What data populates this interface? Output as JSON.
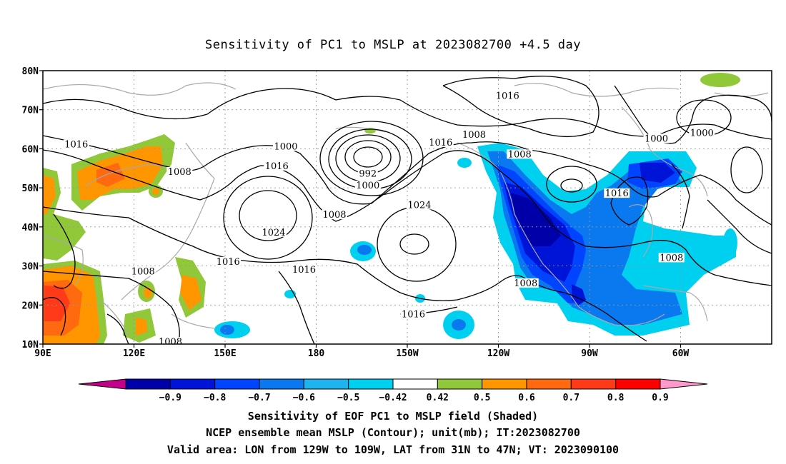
{
  "title": "Sensitivity of PC1 to MSLP at 2023082700 +4.5 day",
  "lat_labels": [
    "80N",
    "70N",
    "60N",
    "50N",
    "40N",
    "30N",
    "20N",
    "10N"
  ],
  "lon_labels": [
    "90E",
    "120E",
    "150E",
    "180",
    "150W",
    "120W",
    "90W",
    "60W"
  ],
  "contour_labels": [
    {
      "text": "1016",
      "lon": 101,
      "lat": 60.5
    },
    {
      "text": "1008",
      "lon": 135,
      "lat": 53.5
    },
    {
      "text": "1000",
      "lon": 170,
      "lat": 60
    },
    {
      "text": "1016",
      "lon": 167,
      "lat": 55
    },
    {
      "text": "992",
      "lon": 197,
      "lat": 53
    },
    {
      "text": "1000",
      "lon": 197,
      "lat": 50
    },
    {
      "text": "1008",
      "lon": 186,
      "lat": 42.5
    },
    {
      "text": "1024",
      "lon": 166,
      "lat": 38
    },
    {
      "text": "1016",
      "lon": 151,
      "lat": 30.5
    },
    {
      "text": "1016",
      "lon": 176,
      "lat": 28.5
    },
    {
      "text": "1008",
      "lon": 123,
      "lat": 28
    },
    {
      "text": "1024",
      "lon": 214,
      "lat": 45
    },
    {
      "text": "1016",
      "lon": 221,
      "lat": 61
    },
    {
      "text": "1008",
      "lon": 232,
      "lat": 63
    },
    {
      "text": "1016",
      "lon": 243,
      "lat": 73
    },
    {
      "text": "1008",
      "lon": 247,
      "lat": 58
    },
    {
      "text": "1016",
      "lon": 279,
      "lat": 48
    },
    {
      "text": "1000",
      "lon": 292,
      "lat": 62
    },
    {
      "text": "1000",
      "lon": 307,
      "lat": 63.5
    },
    {
      "text": "1008",
      "lon": 297,
      "lat": 31.5
    },
    {
      "text": "1008",
      "lon": 249,
      "lat": 25
    },
    {
      "text": "1016",
      "lon": 212,
      "lat": 17
    },
    {
      "text": "1008",
      "lon": 132,
      "lat": 10
    }
  ],
  "colorbar": {
    "tick_labels": [
      "-0.9",
      "-0.8",
      "-0.7",
      "-0.6",
      "-0.5",
      "-0.42",
      "0.42",
      "0.5",
      "0.6",
      "0.7",
      "0.8",
      "0.9"
    ],
    "colors": [
      "#c4008a",
      "#0000a8",
      "#0014d8",
      "#0044ff",
      "#0a78ee",
      "#1eb4f0",
      "#00d0f0",
      "#ffffff",
      "#90c83a",
      "#ff9600",
      "#ff6a10",
      "#ff3a18",
      "#ff0000",
      "#ff99cc"
    ]
  },
  "caption": {
    "line1": "Sensitivity of EOF PC1 to MSLP field (Shaded)",
    "line2": "NCEP ensemble mean MSLP (Contour); unit(mb); IT:2023082700",
    "line3": "Valid area: LON from 129W to 109W, LAT from 31N to 47N; VT: 2023090100"
  }
}
